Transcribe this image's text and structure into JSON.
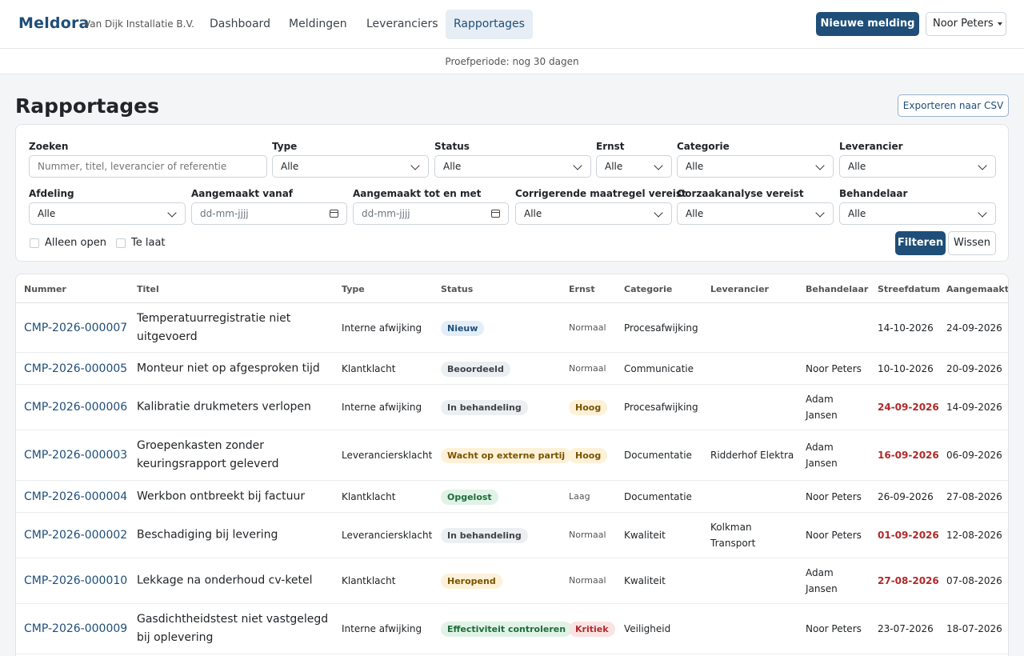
{
  "app": {
    "brand": "Meldora",
    "company": "Van Dijk Installatie B.V."
  },
  "nav": {
    "items": [
      "Dashboard",
      "Meldingen",
      "Leveranciers",
      "Rapportages"
    ],
    "active": "Rapportages",
    "new_report_label": "Nieuwe melding",
    "user": "Noor Peters"
  },
  "trial": {
    "text": "Proefperiode: nog 30 dagen"
  },
  "page": {
    "title": "Rapportages",
    "export_label": "Exporteren naar CSV"
  },
  "filters": {
    "search": {
      "label": "Zoeken",
      "placeholder": "Nummer, titel, leverancier of referentie"
    },
    "type": {
      "label": "Type",
      "value": "Alle"
    },
    "status": {
      "label": "Status",
      "value": "Alle"
    },
    "ernst": {
      "label": "Ernst",
      "value": "Alle"
    },
    "categorie": {
      "label": "Categorie",
      "value": "Alle"
    },
    "leverancier": {
      "label": "Leverancier",
      "value": "Alle"
    },
    "afdeling": {
      "label": "Afdeling",
      "value": "Alle"
    },
    "created_from": {
      "label": "Aangemaakt vanaf",
      "placeholder": "dd-mm-jjjj"
    },
    "created_to": {
      "label": "Aangemaakt tot en met",
      "placeholder": "dd-mm-jjjj"
    },
    "corrective": {
      "label": "Corrigerende maatregel vereist",
      "value": "Alle"
    },
    "root_cause": {
      "label": "Oorzaakanalyse vereist",
      "value": "Alle"
    },
    "handler": {
      "label": "Behandelaar",
      "value": "Alle"
    },
    "only_open": {
      "label": "Alleen open",
      "checked": false
    },
    "late": {
      "label": "Te laat",
      "checked": false
    },
    "apply_label": "Filteren",
    "clear_label": "Wissen"
  },
  "table": {
    "columns": [
      "Nummer",
      "Titel",
      "Type",
      "Status",
      "Ernst",
      "Categorie",
      "Leverancier",
      "Behandelaar",
      "Streefdatum",
      "Aangemaakt"
    ],
    "rows": [
      {
        "nummer": "CMP-2026-000007",
        "titel": "Temperatuurregistratie niet uitgevoerd",
        "type": "Interne afwijking",
        "status": "Nieuw",
        "ernst": "Normaal",
        "categorie": "Procesafwijking",
        "leverancier": "",
        "behandelaar": "",
        "streefdatum": "14-10-2026",
        "streef_late": false,
        "aangemaakt": "24-09-2026"
      },
      {
        "nummer": "CMP-2026-000005",
        "titel": "Monteur niet op afgesproken tijd",
        "type": "Klantklacht",
        "status": "Beoordeeld",
        "ernst": "Normaal",
        "categorie": "Communicatie",
        "leverancier": "",
        "behandelaar": "Noor Peters",
        "streefdatum": "10-10-2026",
        "streef_late": false,
        "aangemaakt": "20-09-2026"
      },
      {
        "nummer": "CMP-2026-000006",
        "titel": "Kalibratie drukmeters verlopen",
        "type": "Interne afwijking",
        "status": "In behandeling",
        "ernst": "Hoog",
        "categorie": "Procesafwijking",
        "leverancier": "",
        "behandelaar": "Adam Jansen",
        "streefdatum": "24-09-2026",
        "streef_late": true,
        "aangemaakt": "14-09-2026"
      },
      {
        "nummer": "CMP-2026-000003",
        "titel": "Groepenkasten zonder keuringsrapport geleverd",
        "type": "Leveranciersklacht",
        "status": "Wacht op externe partij",
        "ernst": "Hoog",
        "categorie": "Documentatie",
        "leverancier": "Ridderhof Elektra",
        "behandelaar": "Adam Jansen",
        "streefdatum": "16-09-2026",
        "streef_late": true,
        "aangemaakt": "06-09-2026"
      },
      {
        "nummer": "CMP-2026-000004",
        "titel": "Werkbon ontbreekt bij factuur",
        "type": "Klantklacht",
        "status": "Opgelost",
        "ernst": "Laag",
        "categorie": "Documentatie",
        "leverancier": "",
        "behandelaar": "Noor Peters",
        "streefdatum": "26-09-2026",
        "streef_late": false,
        "aangemaakt": "27-08-2026"
      },
      {
        "nummer": "CMP-2026-000002",
        "titel": "Beschadiging bij levering",
        "type": "Leveranciersklacht",
        "status": "In behandeling",
        "ernst": "Normaal",
        "categorie": "Kwaliteit",
        "leverancier": "Kolkman Transport",
        "behandelaar": "Noor Peters",
        "streefdatum": "01-09-2026",
        "streef_late": true,
        "aangemaakt": "12-08-2026"
      },
      {
        "nummer": "CMP-2026-000010",
        "titel": "Lekkage na onderhoud cv-ketel",
        "type": "Klantklacht",
        "status": "Heropend",
        "ernst": "Normaal",
        "categorie": "Kwaliteit",
        "leverancier": "",
        "behandelaar": "Adam Jansen",
        "streefdatum": "27-08-2026",
        "streef_late": true,
        "aangemaakt": "07-08-2026"
      },
      {
        "nummer": "CMP-2026-000009",
        "titel": "Gasdichtheidstest niet vastgelegd bij oplevering",
        "type": "Interne afwijking",
        "status": "Effectiviteit controleren",
        "ernst": "Kritiek",
        "categorie": "Veiligheid",
        "leverancier": "",
        "behandelaar": "Noor Peters",
        "streefdatum": "23-07-2026",
        "streef_late": false,
        "aangemaakt": "18-07-2026"
      }
    ]
  },
  "colors": {
    "primary": "#1f4e79",
    "late": "#b02a2a",
    "status": {
      "Nieuw": {
        "bg": "#e3eef8",
        "fg": "#1f4e79"
      },
      "Beoordeeld": {
        "bg": "#eceff2",
        "fg": "#3d4349"
      },
      "In behandeling": {
        "bg": "#eceff2",
        "fg": "#3d4349"
      },
      "Wacht op externe partij": {
        "bg": "#fdf1d8",
        "fg": "#7a5300"
      },
      "Opgelost": {
        "bg": "#e0f3e6",
        "fg": "#1f6b3a"
      },
      "Heropend": {
        "bg": "#fdf1d8",
        "fg": "#7a5300"
      },
      "Effectiviteit controleren": {
        "bg": "#e0f3e6",
        "fg": "#1f6b3a"
      }
    },
    "ernst": {
      "Hoog": {
        "bg": "#fdf1d8",
        "fg": "#7a5300"
      },
      "Kritiek": {
        "bg": "#fbe3e3",
        "fg": "#b02a2a"
      }
    }
  }
}
